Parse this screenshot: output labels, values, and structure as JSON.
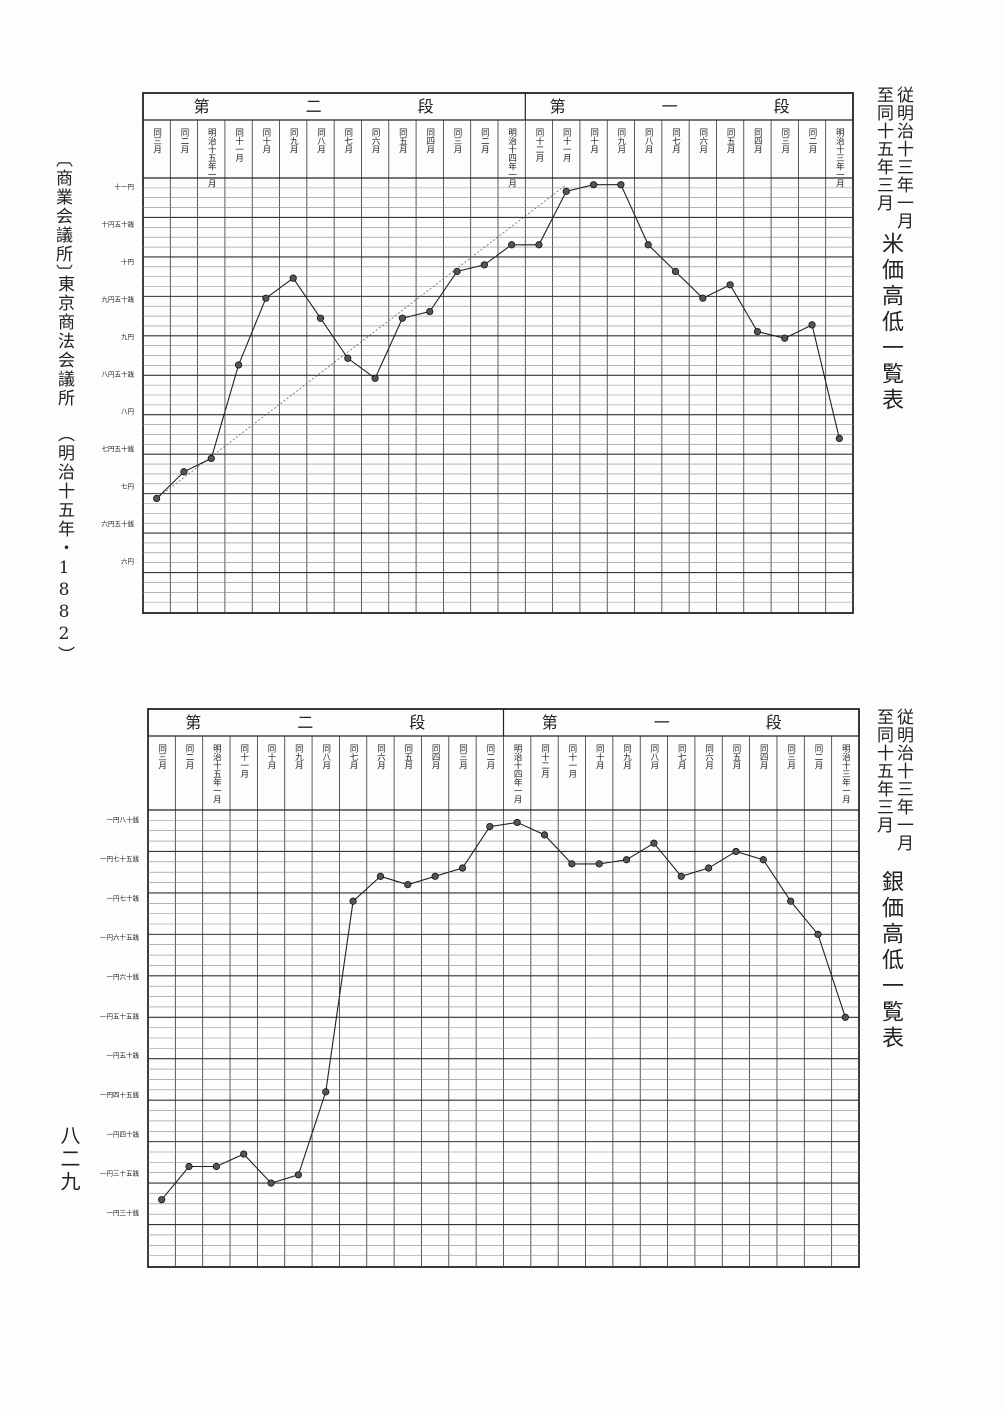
{
  "side_note": {
    "source": "〔商業会議所〕",
    "publisher": "東京商法会議所",
    "edition": "（明治十五年・1882）",
    "page_number": "八二九"
  },
  "header_labels": {
    "first_block": "第　一　段",
    "second_block": "第　二　段"
  },
  "chart_data": [
    {
      "type": "line",
      "title": "米価高低一覧表",
      "period_from": "従明治十三年一月",
      "period_to": "至同十五年三月",
      "period_lines": [
        "従明",
        "至同",
        "治",
        "十十",
        "五三",
        "年年",
        "三一",
        "月月"
      ],
      "month_headers": [
        "明治十三年一月",
        "同 二月",
        "同 三月",
        "同 四月",
        "同 五月",
        "同 六月",
        "同 七月",
        "同 八月",
        "同 九月",
        "同 十月",
        "同 十一月",
        "同 十二月",
        "明治十四年一月",
        "同 二月",
        "同 三月",
        "同 四月",
        "同 五月",
        "同 六月",
        "同 七月",
        "同 八月",
        "同 九月",
        "同 十月",
        "同 十一月",
        "明治十五年一月",
        "同 二月",
        "同 三月"
      ],
      "y_tick_labels": [
        "十一円",
        "十円五十銭",
        "十円",
        "九円五十銭",
        "九円",
        "八円五十銭",
        "八円",
        "七円五十銭",
        "七円",
        "六円五十銭",
        "六円"
      ],
      "ylim": [
        5.5,
        12
      ],
      "values": [
        7.2,
        7.6,
        7.8,
        9.2,
        10.2,
        10.5,
        9.9,
        9.3,
        9.0,
        9.9,
        10.0,
        10.6,
        10.7,
        11.0,
        11.0,
        11.8,
        11.9,
        11.9,
        11.0,
        10.6,
        10.2,
        10.4,
        9.7,
        9.6,
        9.8,
        8.1
      ],
      "dotted_trend": [
        7.2,
        11.9
      ]
    },
    {
      "type": "line",
      "title": "銀価高低一覧表",
      "period_from": "従明治十三年一月",
      "period_to": "至同十五年三月",
      "period_lines": [
        "従明",
        "至同",
        "治",
        "十十",
        "五三",
        "年年",
        "三一",
        "月月"
      ],
      "month_headers": [
        "明治十三年一月",
        "同 二月",
        "同 三月",
        "同 四月",
        "同 五月",
        "同 六月",
        "同 七月",
        "同 八月",
        "同 九月",
        "同 十月",
        "同 十一月",
        "同 十二月",
        "明治十四年一月",
        "同 二月",
        "同 三月",
        "同 四月",
        "同 五月",
        "同 六月",
        "同 七月",
        "同 八月",
        "同 九月",
        "同 十月",
        "同 十一月",
        "明治十五年一月",
        "同 二月",
        "同 三月"
      ],
      "y_tick_labels": [
        "一円八十銭",
        "一円七十五銭",
        "一円七十銭",
        "一円六十五銭",
        "一円六十銭",
        "一円五十五銭",
        "一円五十銭",
        "一円四十五銭",
        "一円四十銭",
        "一円三十五銭",
        "一円三十銭"
      ],
      "ylim": [
        1.25,
        1.8
      ],
      "values": [
        1.33,
        1.37,
        1.37,
        1.385,
        1.35,
        1.36,
        1.46,
        1.69,
        1.72,
        1.71,
        1.72,
        1.73,
        1.78,
        1.785,
        1.77,
        1.735,
        1.735,
        1.74,
        1.76,
        1.72,
        1.73,
        1.75,
        1.74,
        1.69,
        1.65,
        1.55
      ]
    }
  ]
}
